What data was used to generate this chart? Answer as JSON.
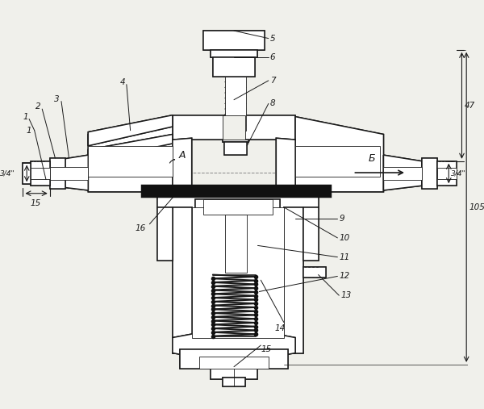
{
  "bg_color": "#f0f0eb",
  "lc": "#1a1a1a",
  "lw": 1.1,
  "lw_t": 0.6,
  "hatch": "////",
  "fs": 7.5,
  "fs_sm": 7.0
}
